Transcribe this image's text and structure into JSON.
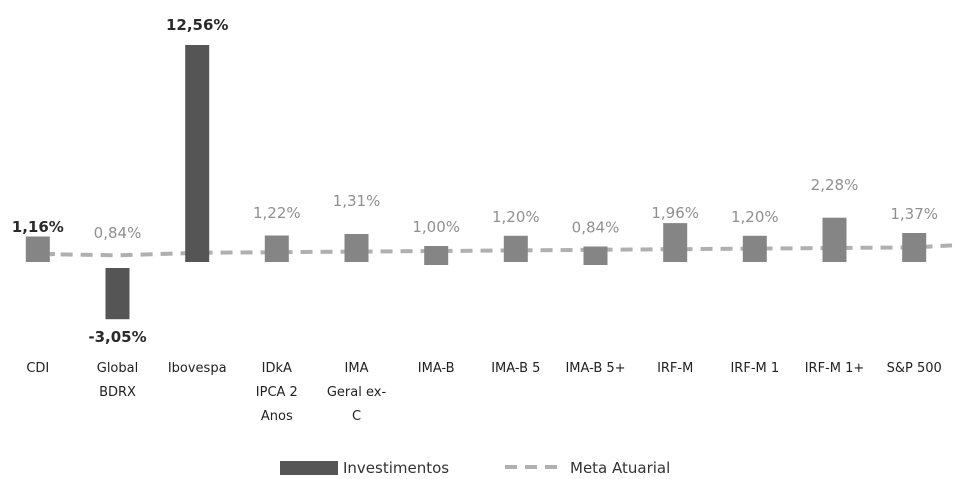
{
  "chart_data": {
    "type": "bar",
    "categories": [
      [
        "CDI"
      ],
      [
        "Global",
        "BDRX"
      ],
      [
        "Ibovespa"
      ],
      [
        "IDkA",
        "IPCA 2",
        "Anos"
      ],
      [
        "IMA",
        "Geral ex-",
        "C"
      ],
      [
        "IMA-B"
      ],
      [
        "IMA-B 5"
      ],
      [
        "IMA-B 5+"
      ],
      [
        "IRF-M"
      ],
      [
        "IRF-M 1"
      ],
      [
        "IRF-M 1+"
      ],
      [
        "S&P 500"
      ]
    ],
    "series": [
      {
        "name": "Investimentos",
        "type": "bar",
        "values": [
          1.16,
          -3.05,
          12.56,
          1.22,
          1.31,
          1.0,
          1.2,
          0.84,
          1.96,
          1.2,
          2.28,
          1.37
        ]
      },
      {
        "name": "Meta Atuarial",
        "type": "line",
        "style": "dashed",
        "values": [
          1.16,
          0.84,
          1.16,
          1.16,
          1.16,
          1.16,
          1.16,
          1.16,
          1.16,
          1.16,
          1.16,
          1.16
        ]
      }
    ],
    "data_labels": [
      "1,16%",
      "0,84%",
      "12,56%",
      "1,22%",
      "1,31%",
      "1,00%",
      "1,20%",
      "0,84%",
      "1,96%",
      "1,20%",
      "2,28%",
      "1,37%"
    ],
    "extra_labels": [
      {
        "category_index": 1,
        "text": "-3,05%"
      }
    ],
    "bold_labels": [
      0,
      2
    ],
    "legend": {
      "position": "bottom",
      "entries": [
        "Investimentos",
        "Meta Atuarial"
      ]
    },
    "grid": false,
    "ylim": [
      -3.5,
      13
    ]
  },
  "colors": {
    "bar": "#858585",
    "bar_dark": "#555555",
    "line": "#b0b0b0",
    "label_bold": "#2a2a2a",
    "label_light": "#909090"
  }
}
